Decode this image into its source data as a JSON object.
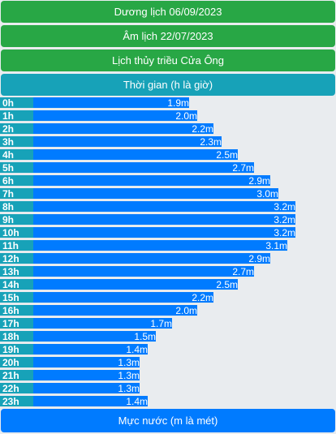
{
  "header": {
    "solar_date": "Dương lịch 06/09/2023",
    "lunar_date": "Âm lịch 22/07/2023",
    "title": "Lịch thủy triều Cửa Ông",
    "time_header": "Thời gian (h là giờ)",
    "footer": "Mực nước (m là mét)"
  },
  "colors": {
    "green": "#28a745",
    "teal": "#17a2b8",
    "blue": "#007bff",
    "background": "#e9ecef"
  },
  "scale_max_m": 3.7,
  "tide_rows": [
    {
      "hour": "0h",
      "level": 1.9,
      "label": "1.9m"
    },
    {
      "hour": "1h",
      "level": 2.0,
      "label": "2.0m"
    },
    {
      "hour": "2h",
      "level": 2.2,
      "label": "2.2m"
    },
    {
      "hour": "3h",
      "level": 2.3,
      "label": "2.3m"
    },
    {
      "hour": "4h",
      "level": 2.5,
      "label": "2.5m"
    },
    {
      "hour": "5h",
      "level": 2.7,
      "label": "2.7m"
    },
    {
      "hour": "6h",
      "level": 2.9,
      "label": "2.9m"
    },
    {
      "hour": "7h",
      "level": 3.0,
      "label": "3.0m"
    },
    {
      "hour": "8h",
      "level": 3.2,
      "label": "3.2m"
    },
    {
      "hour": "9h",
      "level": 3.2,
      "label": "3.2m"
    },
    {
      "hour": "10h",
      "level": 3.2,
      "label": "3.2m"
    },
    {
      "hour": "11h",
      "level": 3.1,
      "label": "3.1m"
    },
    {
      "hour": "12h",
      "level": 2.9,
      "label": "2.9m"
    },
    {
      "hour": "13h",
      "level": 2.7,
      "label": "2.7m"
    },
    {
      "hour": "14h",
      "level": 2.5,
      "label": "2.5m"
    },
    {
      "hour": "15h",
      "level": 2.2,
      "label": "2.2m"
    },
    {
      "hour": "16h",
      "level": 2.0,
      "label": "2.0m"
    },
    {
      "hour": "17h",
      "level": 1.7,
      "label": "1.7m"
    },
    {
      "hour": "18h",
      "level": 1.5,
      "label": "1.5m"
    },
    {
      "hour": "19h",
      "level": 1.4,
      "label": "1.4m"
    },
    {
      "hour": "20h",
      "level": 1.3,
      "label": "1.3m"
    },
    {
      "hour": "21h",
      "level": 1.3,
      "label": "1.3m"
    },
    {
      "hour": "22h",
      "level": 1.3,
      "label": "1.3m"
    },
    {
      "hour": "23h",
      "level": 1.4,
      "label": "1.4m"
    }
  ]
}
